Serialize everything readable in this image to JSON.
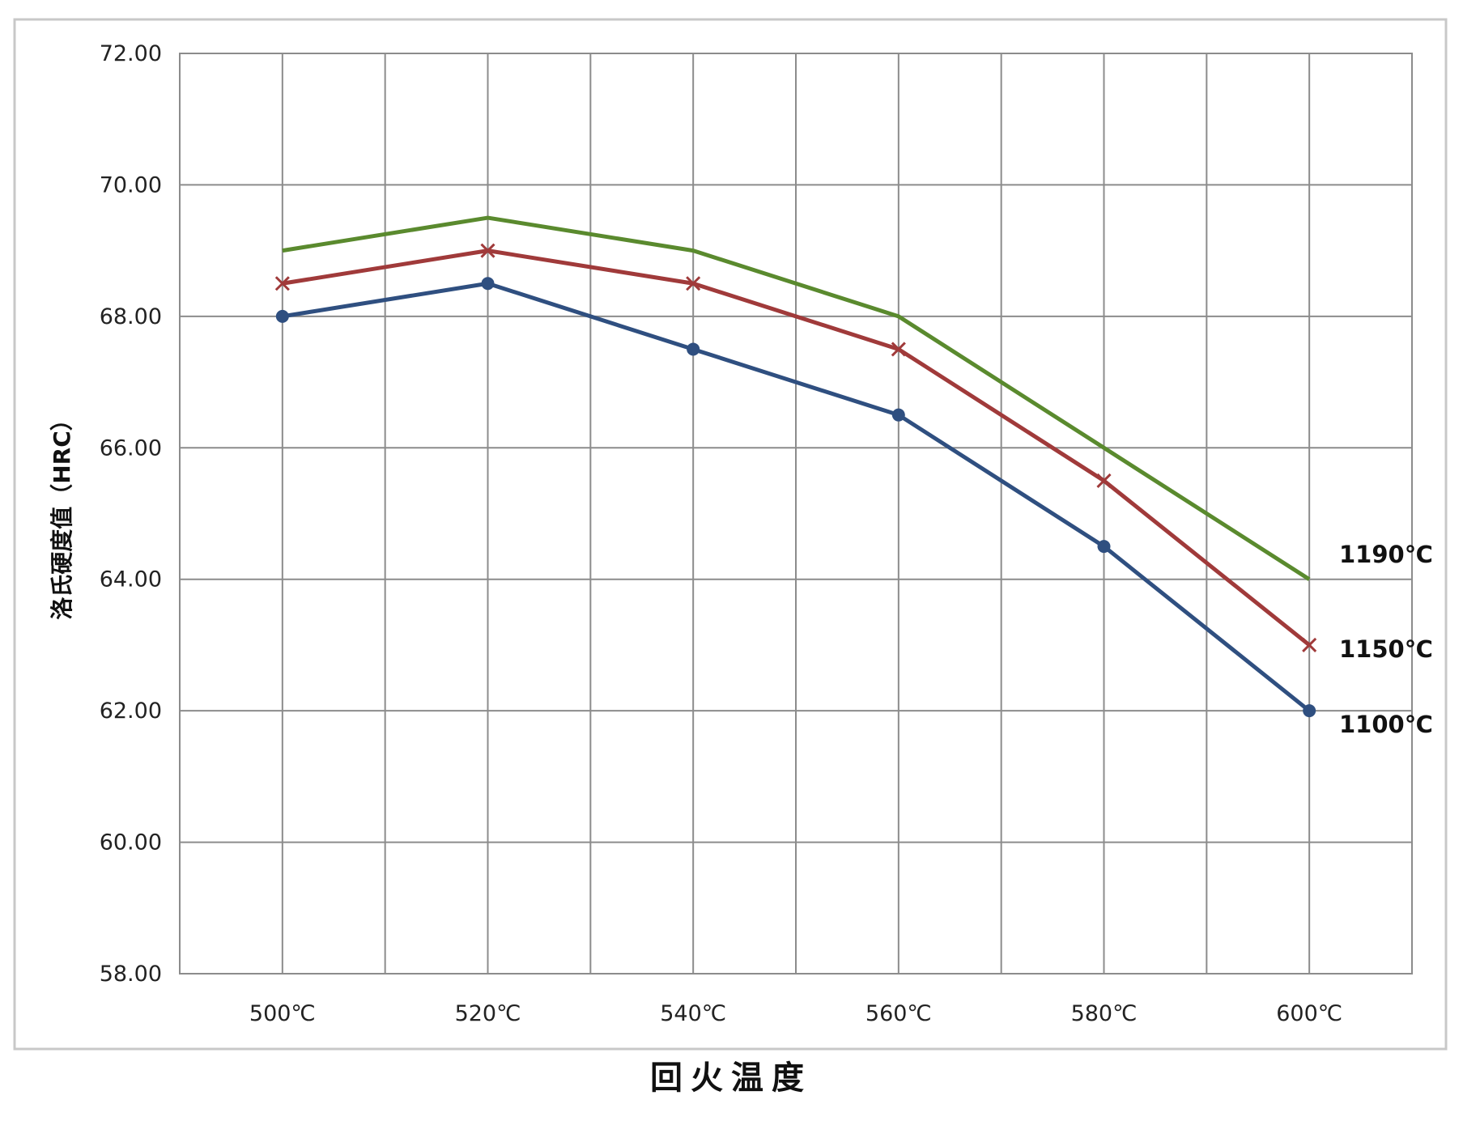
{
  "chart_data": {
    "type": "line",
    "xlabel": "回火温度",
    "ylabel": "洛氏硬度值（HRC）",
    "categories": [
      "500℃",
      "520℃",
      "540℃",
      "560℃",
      "580℃",
      "600℃"
    ],
    "ylim": [
      58,
      72
    ],
    "yticks": [
      "58.00",
      "60.00",
      "62.00",
      "64.00",
      "66.00",
      "68.00",
      "70.00",
      "72.00"
    ],
    "grid": true,
    "legend": "right-end labels",
    "series": [
      {
        "name": "1190℃",
        "values": [
          69.0,
          69.5,
          69.0,
          68.0,
          66.0,
          64.0
        ],
        "color": "#5a8a2e",
        "marker": "none"
      },
      {
        "name": "1150℃",
        "values": [
          68.5,
          69.0,
          68.5,
          67.5,
          65.5,
          63.0
        ],
        "color": "#a03a3a",
        "marker": "x"
      },
      {
        "name": "1100℃",
        "values": [
          68.0,
          68.5,
          67.5,
          66.5,
          64.5,
          62.0
        ],
        "color": "#2f4f80",
        "marker": "circle"
      }
    ]
  }
}
